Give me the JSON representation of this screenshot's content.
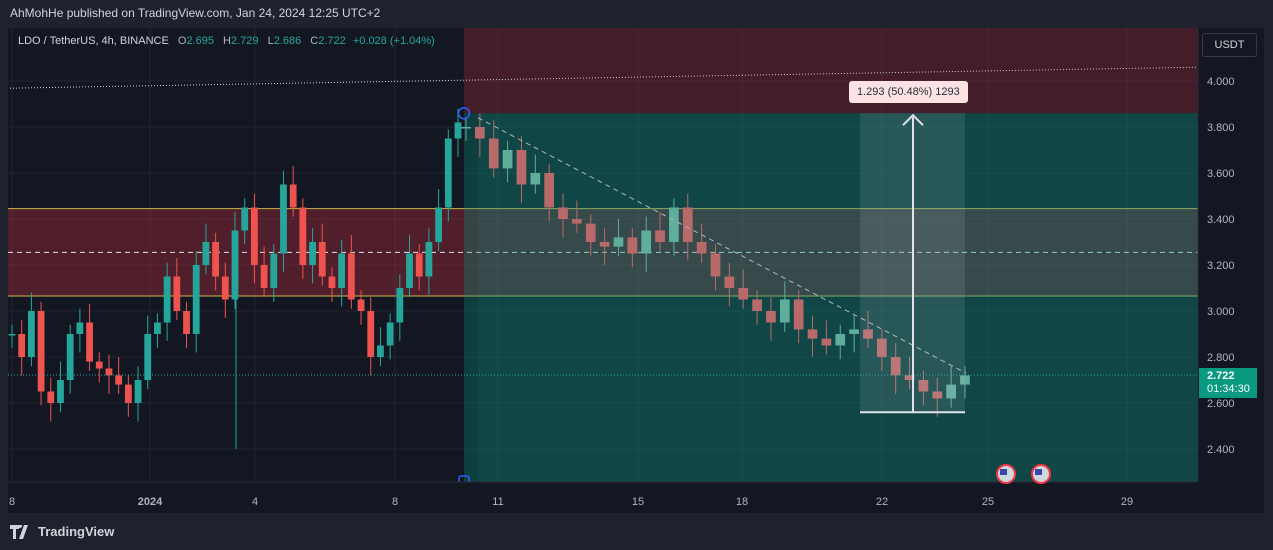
{
  "header": {
    "published": "AhMohHe published on TradingView.com, Jan 24, 2024 12:25 UTC+2"
  },
  "legend": {
    "symbol": "LDO / TetherUS, 4h, BINANCE",
    "open_label": "O",
    "open": "2.695",
    "high_label": "H",
    "high": "2.729",
    "low_label": "L",
    "low": "2.686",
    "close_label": "C",
    "close": "2.722",
    "change": "+0.028 (+1.04%)"
  },
  "currency": "USDT",
  "price_tag": {
    "price": "2.722",
    "countdown": "01:34:30"
  },
  "measure_label": "1.293 (50.48%) 1293",
  "footer": {
    "brand": "TradingView"
  },
  "chart_data": {
    "type": "candlestick",
    "y_axis": {
      "ticks": [
        "4.000",
        "3.800",
        "3.600",
        "3.400",
        "3.200",
        "3.000",
        "2.800",
        "2.600",
        "2.400"
      ],
      "range": [
        2.27,
        4.25
      ]
    },
    "x_axis": {
      "ticks": [
        "8",
        "2024",
        "4",
        "8",
        "11",
        "15",
        "18",
        "22",
        "25",
        "29"
      ]
    },
    "zones": [
      {
        "name": "supply-zone",
        "from": 3.065,
        "to": 3.445,
        "mid": 3.255,
        "color": "#f23645"
      },
      {
        "name": "target-zone",
        "from": 3.86,
        "to": 4.25,
        "color": "#f23645"
      },
      {
        "name": "long-position-zone",
        "from": 2.27,
        "to": 3.86,
        "color": "#089981"
      }
    ],
    "measure": {
      "from": 2.56,
      "to": 3.86
    },
    "close_line": 2.722,
    "previous_high_line": 4.06,
    "trend_line": {
      "from": 3.84,
      "to": 2.73
    },
    "colors": {
      "up": "#26a69a",
      "down": "#ef5350",
      "up_muted": "#5fae9b",
      "down_muted": "#b86a6a"
    },
    "series": [
      {
        "name": "segment-1",
        "values": [
          2.9,
          2.8,
          3.0,
          2.65,
          2.6,
          2.7,
          2.9,
          2.95,
          2.78,
          2.75,
          2.72,
          2.68,
          2.6,
          2.7,
          2.9,
          2.95,
          3.15,
          3.0,
          2.9,
          3.2,
          3.3,
          3.15,
          3.05,
          3.35,
          3.45,
          3.2,
          3.1,
          3.25,
          3.55,
          3.45,
          3.2,
          3.3,
          3.15,
          3.1,
          3.25,
          3.05,
          3.0,
          2.8,
          2.85,
          2.95,
          3.1,
          3.25,
          3.15,
          3.3,
          3.45,
          3.75,
          3.82
        ]
      },
      {
        "name": "segment-2",
        "values": [
          3.8,
          3.75,
          3.62,
          3.7,
          3.55,
          3.6,
          3.45,
          3.4,
          3.38,
          3.3,
          3.28,
          3.32,
          3.25,
          3.35,
          3.3,
          3.45,
          3.3,
          3.25,
          3.15,
          3.1,
          3.05,
          3.0,
          2.95,
          3.05,
          2.92,
          2.88,
          2.85,
          2.9,
          2.92,
          2.88,
          2.8,
          2.72,
          2.7,
          2.65,
          2.62,
          2.68,
          2.72
        ]
      }
    ]
  }
}
